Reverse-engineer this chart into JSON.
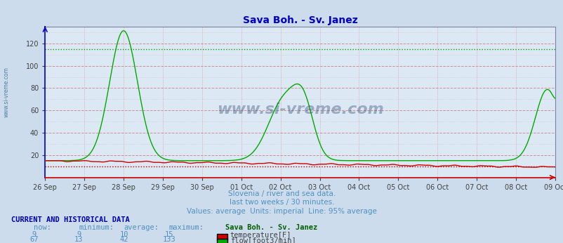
{
  "title": "Sava Boh. - Sv. Janez",
  "title_color": "#0000cc",
  "bg_color": "#ccdcec",
  "plot_bg_color": "#dce8f4",
  "grid_minor_color": "#c8b8b8",
  "grid_major_color": "#d09090",
  "x_labels": [
    "26 Sep",
    "27 Sep",
    "28 Sep",
    "29 Sep",
    "30 Sep",
    "01 Oct",
    "02 Oct",
    "03 Oct",
    "04 Oct",
    "05 Oct",
    "06 Oct",
    "07 Oct",
    "08 Oct",
    "09 Oct"
  ],
  "ylim": [
    0,
    135
  ],
  "yticks": [
    20,
    40,
    60,
    80,
    100,
    120
  ],
  "temp_color": "#cc0000",
  "flow_color": "#00aa00",
  "temp_avg_value": 10,
  "flow_avg_value": 42,
  "temp_max_value": 15,
  "flow_max_value": 133,
  "subtitle1": "Slovenia / river and sea data.",
  "subtitle2": "last two weeks / 30 minutes.",
  "subtitle3": "Values: average  Units: imperial  Line: 95% average",
  "subtitle_color": "#5090c0",
  "watermark": "www.si-vreme.com",
  "left_label": "www.si-vreme.com",
  "table_header_color": "#0000aa",
  "n_points": 672
}
